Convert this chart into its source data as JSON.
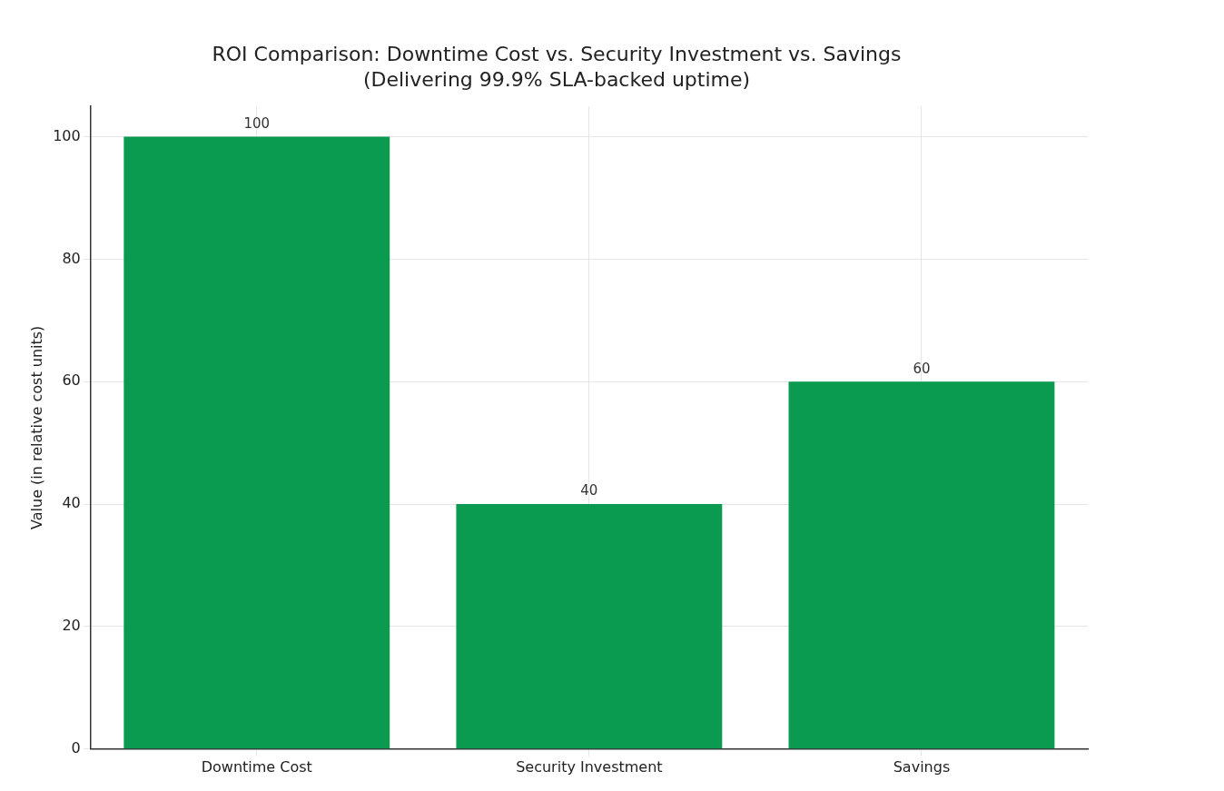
{
  "chart_data": {
    "type": "bar",
    "title": "ROI Comparison: Downtime Cost vs. Security Investment vs. Savings",
    "subtitle": "(Delivering 99.9% SLA-backed uptime)",
    "ylabel": "Value (in relative cost units)",
    "categories": [
      "Downtime Cost",
      "Security Investment",
      "Savings"
    ],
    "values": [
      100,
      40,
      60
    ],
    "color": "#0a9b50",
    "ylim": [
      0,
      105
    ],
    "yticks": [
      0,
      20,
      40,
      60,
      80,
      100
    ],
    "grid": true,
    "data_labels": true
  }
}
